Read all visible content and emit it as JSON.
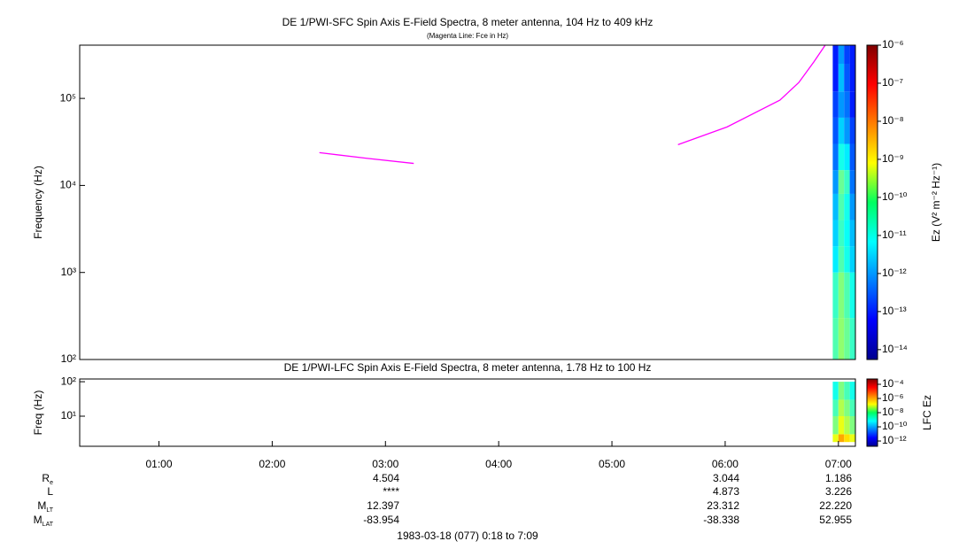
{
  "chart_data": [
    {
      "type": "spectrogram",
      "title": "DE 1/PWI-SFC  Spin Axis E-Field Spectra, 8 meter antenna, 104 Hz to 409 kHz",
      "subtitle": "(Magenta Line: Fce in Hz)",
      "ylabel": "Frequency (Hz)",
      "yscale": "log",
      "xlim": [
        18,
        429
      ],
      "ylim": [
        100,
        409000
      ],
      "yticks": [
        {
          "value": 100,
          "label": "10²"
        },
        {
          "value": 1000,
          "label": "10³"
        },
        {
          "value": 10000,
          "label": "10⁴"
        },
        {
          "value": 100000,
          "label": "10⁵"
        }
      ],
      "time_bins": [
        417,
        420,
        423,
        426,
        429
      ],
      "freq_bins": [
        100,
        300,
        1000,
        2000,
        4000,
        8000,
        15000,
        30000,
        60000,
        120000,
        250000,
        409000
      ],
      "z": [
        [
          3e-11,
          1e-10,
          5e-11,
          2e-11
        ],
        [
          2e-11,
          8e-11,
          3e-11,
          1e-11
        ],
        [
          5e-12,
          3e-11,
          1e-11,
          3e-12
        ],
        [
          3e-12,
          2e-11,
          8e-12,
          2e-12
        ],
        [
          2e-12,
          3e-11,
          1e-11,
          1e-12
        ],
        [
          1e-12,
          5e-11,
          2e-11,
          5e-13
        ],
        [
          5e-13,
          1e-11,
          5e-12,
          3e-13
        ],
        [
          3e-13,
          3e-12,
          1e-12,
          2e-13
        ],
        [
          2e-13,
          1e-12,
          5e-13,
          1e-13
        ],
        [
          1e-13,
          2e-12,
          3e-13,
          1e-13
        ],
        [
          1e-13,
          1e-12,
          2e-13,
          1e-13
        ]
      ],
      "colorbar": {
        "label": "Ez (V² m⁻² Hz⁻¹)",
        "scale": "log",
        "clim": [
          5.5e-15,
          1e-06
        ],
        "cticks": [
          {
            "value": 1e-06,
            "label": "10⁻⁶"
          },
          {
            "value": 1e-07,
            "label": "10⁻⁷"
          },
          {
            "value": 1e-08,
            "label": "10⁻⁸"
          },
          {
            "value": 1e-09,
            "label": "10⁻⁹"
          },
          {
            "value": 1e-10,
            "label": "10⁻¹⁰"
          },
          {
            "value": 1e-11,
            "label": "10⁻¹¹"
          },
          {
            "value": 1e-12,
            "label": "10⁻¹²"
          },
          {
            "value": 1e-13,
            "label": "10⁻¹³"
          },
          {
            "value": 1e-14,
            "label": "10⁻¹⁴"
          }
        ]
      },
      "series": [
        {
          "color": "#ff00ff",
          "x": [
            145,
            170,
            195,
            265,
            335,
            361,
            389,
            399,
            407,
            413
          ],
          "values": [
            23800,
            20500,
            17900,
            null,
            29400,
            47000,
            95500,
            152000,
            263000,
            409000
          ]
        }
      ]
    },
    {
      "type": "spectrogram",
      "title": "DE 1/PWI-LFC  Spin Axis E-Field Spectra, 8 meter antenna, 1.78 Hz to 100 Hz",
      "ylabel": "Freq (Hz)",
      "yscale": "log",
      "xlim": [
        18,
        429
      ],
      "xticks": [
        {
          "value": 60,
          "label": "01:00"
        },
        {
          "value": 120,
          "label": "02:00"
        },
        {
          "value": 180,
          "label": "03:00"
        },
        {
          "value": 240,
          "label": "04:00"
        },
        {
          "value": 300,
          "label": "05:00"
        },
        {
          "value": 360,
          "label": "06:00"
        },
        {
          "value": 420,
          "label": "07:00"
        }
      ],
      "ylim": [
        1.34,
        120
      ],
      "yticks": [
        {
          "value": 10,
          "label": "10¹"
        },
        {
          "value": 100,
          "label": "10²"
        }
      ],
      "time_bins": [
        417,
        420,
        423,
        426,
        429
      ],
      "freq_bins": [
        1.78,
        3,
        10,
        30,
        100
      ],
      "z": [
        [
          1e-07,
          1e-06,
          3e-07,
          1e-07
        ],
        [
          1e-08,
          1e-07,
          3e-08,
          1e-08
        ],
        [
          3e-09,
          3e-08,
          1e-08,
          3e-09
        ],
        [
          1e-09,
          1e-08,
          3e-09,
          1e-09
        ]
      ],
      "colorbar": {
        "label": "LFC Ez",
        "scale": "log",
        "clim": [
          1.8e-13,
          0.00056
        ],
        "cticks": [
          {
            "value": 0.0001,
            "label": "10⁻⁴"
          },
          {
            "value": 1e-06,
            "label": "10⁻⁶"
          },
          {
            "value": 1e-08,
            "label": "10⁻⁸"
          },
          {
            "value": 1e-10,
            "label": "10⁻¹⁰"
          },
          {
            "value": 1e-12,
            "label": "10⁻¹²"
          }
        ]
      }
    }
  ],
  "ephemeris": [
    {
      "label": "R",
      "sub": "e",
      "values": [
        "4.504",
        "3.044",
        "1.186"
      ]
    },
    {
      "label": "L",
      "sub": "",
      "values": [
        "****",
        "4.873",
        "3.226"
      ]
    },
    {
      "label": "M",
      "sub": "LT",
      "values": [
        "12.397",
        "23.312",
        "22.220"
      ]
    },
    {
      "label": "M",
      "sub": "LAT",
      "values": [
        "-83.954",
        "-38.338",
        "52.955"
      ]
    }
  ],
  "footer": "1983-03-18 (077) 0:18 to 7:09"
}
